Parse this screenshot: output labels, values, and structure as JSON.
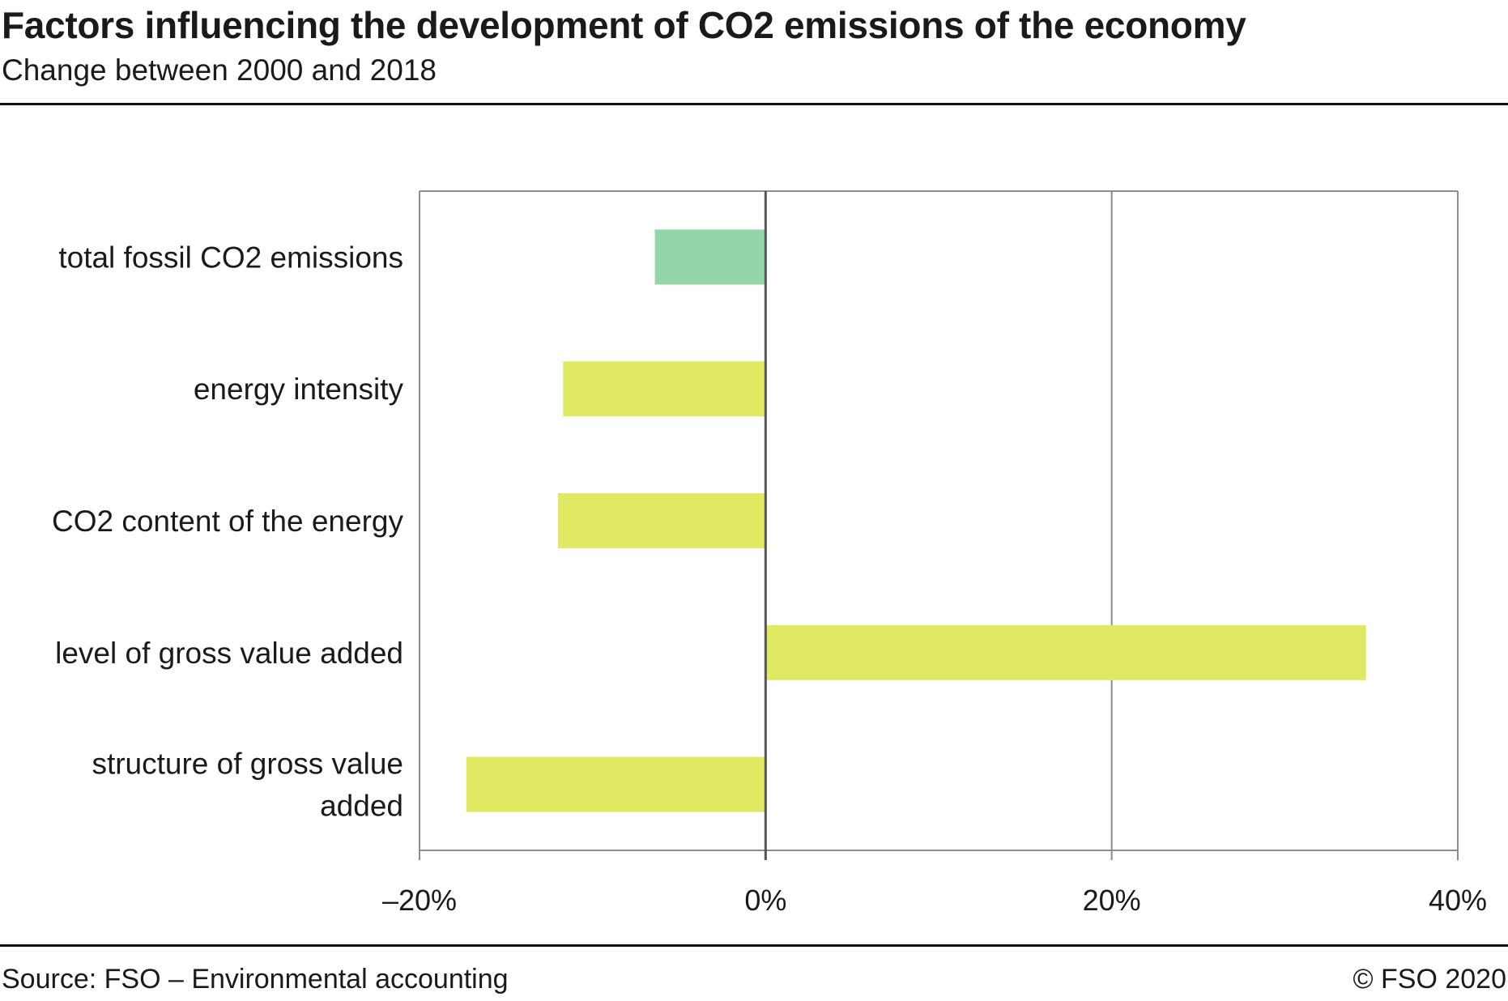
{
  "chart_data": {
    "type": "bar",
    "orientation": "horizontal",
    "title": "Factors influencing the development of CO2 emissions of the economy",
    "subtitle": "Change between 2000 and 2018",
    "categories": [
      "total fossil CO2 emissions",
      "energy intensity",
      "CO2 content of the energy",
      "level of gross value added",
      "structure of gross value added"
    ],
    "category_lines": [
      [
        "total fossil CO2 emissions"
      ],
      [
        "energy intensity"
      ],
      [
        "CO2 content of the energy"
      ],
      [
        "level of gross value added"
      ],
      [
        "structure of gross value",
        "added"
      ]
    ],
    "values": [
      -6.4,
      -11.7,
      -12.0,
      34.7,
      -17.3
    ],
    "value_unit": "%",
    "bar_colors": [
      "#93d4a8",
      "#e0e962",
      "#e0e962",
      "#e0e962",
      "#e0e962"
    ],
    "xlim": [
      -20,
      40
    ],
    "xticks": [
      -20,
      0,
      20,
      40
    ],
    "xtick_labels": [
      "–20%",
      "0%",
      "20%",
      "40%"
    ],
    "grid": true,
    "legend": "none"
  },
  "footer": {
    "source": "Source: FSO – Environmental accounting",
    "copyright": "© FSO 2020"
  },
  "colors": {
    "grid": "#8c8c8c",
    "zero_line": "#555555",
    "text": "#1a1a1a"
  }
}
